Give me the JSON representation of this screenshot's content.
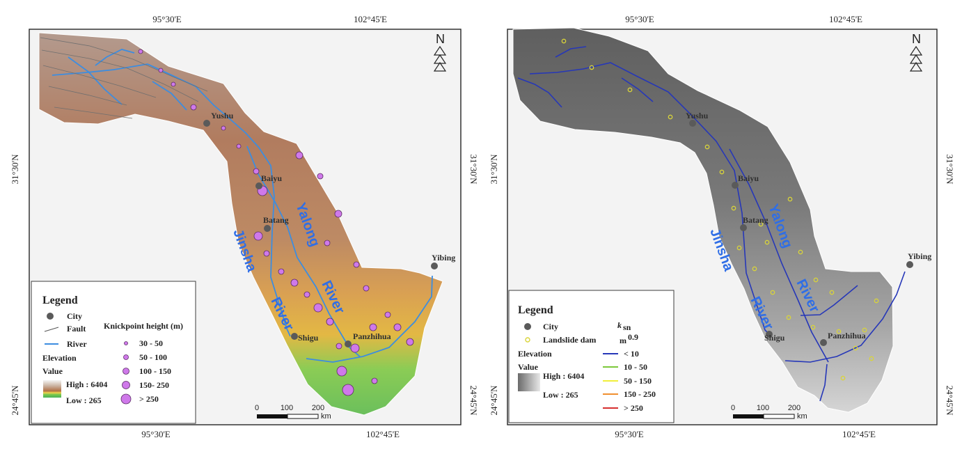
{
  "maps": [
    {
      "coords": {
        "lon_left": "95°30'E",
        "lon_right": "102°45'E",
        "lat_upper": "31°30'N",
        "lat_lower": "24°45'N"
      },
      "north_label": "N",
      "cities": [
        "Yushu",
        "Baiyu",
        "Batang",
        "Shigu",
        "Panzhihua",
        "Yibing"
      ],
      "rivers": [
        "Jinsha",
        "Yalong",
        "River",
        "River"
      ],
      "scale": {
        "ticks": [
          "0",
          "100",
          "200"
        ],
        "unit": "km"
      },
      "legend": {
        "title": "Legend",
        "city": "City",
        "fault": "Fault",
        "river": "River",
        "elevation": "Elevation",
        "value": "Value",
        "high": "High : 6404",
        "low": "Low : 265",
        "knick_title": "Knickpoint height (m)",
        "knick_items": [
          "30 - 50",
          "50 - 100",
          "100 - 150",
          "150- 250",
          "> 250"
        ]
      }
    },
    {
      "coords": {
        "lon_left": "95°30'E",
        "lon_right": "102°45'E",
        "lat_upper": "31°30'N",
        "lat_lower": "24°45'N"
      },
      "north_label": "N",
      "cities": [
        "Yushu",
        "Baiyu",
        "Batang",
        "Shigu",
        "Panzhihua",
        "Yibing"
      ],
      "rivers": [
        "Jinsha",
        "Yalong",
        "River",
        "River"
      ],
      "scale": {
        "ticks": [
          "0",
          "100",
          "200"
        ],
        "unit": "km"
      },
      "legend": {
        "title": "Legend",
        "city": "City",
        "landslide": "Landslide dam",
        "elevation": "Elevation",
        "value": "Value",
        "high": "High : 6404",
        "low": "Low : 265",
        "ksn_symbol": "k",
        "ksn_sub": "sn",
        "ksn_unit_base": "m",
        "ksn_unit_exp": "0.9",
        "ksn_items": [
          "< 10",
          "10 - 50",
          "50 - 150",
          "150 - 250",
          "> 250"
        ]
      }
    }
  ],
  "colors": {
    "river_blue": "#3c8de0",
    "channel_blue": "#2637b8",
    "knickpoint_fill": "#cf79ea",
    "landslide_yellow": "#d9d43a",
    "ksn_low": "#2637b8",
    "ksn_mid1": "#7cc83a",
    "ksn_mid2": "#f1ef3a",
    "ksn_high": "#f08f2f",
    "ksn_max": "#d62f2f"
  }
}
